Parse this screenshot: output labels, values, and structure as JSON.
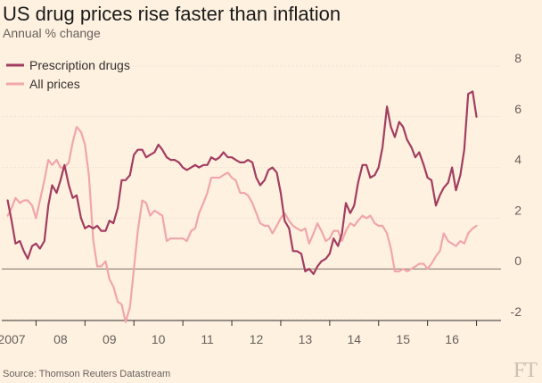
{
  "header": {
    "title": "US drug prices rise faster than inflation",
    "subtitle": "Annual % change"
  },
  "footer": {
    "source": "Source: Thomson Reuters Datastream",
    "logo": "FT"
  },
  "colors": {
    "background": "#fff1e0",
    "prescription": "#a23d60",
    "all_prices": "#f0a6aa",
    "gridline": "#e6d9ce",
    "zeroline": "#7a6e66"
  },
  "chart_data": {
    "type": "line",
    "title": "US drug prices rise faster than inflation",
    "subtitle": "Annual % change",
    "xlabel": "",
    "ylabel": "",
    "ylim": [
      -2,
      8
    ],
    "xlim": [
      2006.8,
      2017.0
    ],
    "yticks": [
      -2,
      0,
      2,
      4,
      6,
      8
    ],
    "xtick_labels": [
      "2007",
      "08",
      "09",
      "10",
      "11",
      "12",
      "13",
      "14",
      "15",
      "16"
    ],
    "xtick_positions": [
      2007,
      2008,
      2009,
      2010,
      2011,
      2012,
      2013,
      2014,
      2015,
      2016
    ],
    "grid": "horizontal",
    "legend": "top-left",
    "series": [
      {
        "name": "Prescription drugs",
        "color": "#a23d60",
        "x": [
          2006.92,
          2007.0,
          2007.08,
          2007.17,
          2007.25,
          2007.33,
          2007.42,
          2007.5,
          2007.58,
          2007.67,
          2007.75,
          2007.83,
          2007.92,
          2008.0,
          2008.08,
          2008.17,
          2008.25,
          2008.33,
          2008.42,
          2008.5,
          2008.58,
          2008.67,
          2008.75,
          2008.83,
          2008.92,
          2009.0,
          2009.08,
          2009.17,
          2009.25,
          2009.33,
          2009.42,
          2009.5,
          2009.58,
          2009.67,
          2009.75,
          2009.83,
          2009.92,
          2010.0,
          2010.08,
          2010.17,
          2010.25,
          2010.33,
          2010.42,
          2010.5,
          2010.58,
          2010.67,
          2010.75,
          2010.83,
          2010.92,
          2011.0,
          2011.08,
          2011.17,
          2011.25,
          2011.33,
          2011.42,
          2011.5,
          2011.58,
          2011.67,
          2011.75,
          2011.83,
          2011.92,
          2012.0,
          2012.08,
          2012.17,
          2012.25,
          2012.33,
          2012.42,
          2012.5,
          2012.58,
          2012.67,
          2012.75,
          2012.83,
          2012.92,
          2013.0,
          2013.08,
          2013.17,
          2013.25,
          2013.33,
          2013.42,
          2013.5,
          2013.58,
          2013.67,
          2013.75,
          2013.83,
          2013.92,
          2014.0,
          2014.08,
          2014.17,
          2014.25,
          2014.33,
          2014.42,
          2014.5,
          2014.58,
          2014.67,
          2014.75,
          2014.83,
          2014.92,
          2015.0,
          2015.08,
          2015.17,
          2015.25,
          2015.33,
          2015.42,
          2015.5,
          2015.58,
          2015.67,
          2015.75,
          2015.83,
          2015.92,
          2016.0,
          2016.08,
          2016.17,
          2016.25,
          2016.33,
          2016.42,
          2016.5
        ],
        "values": [
          2.7,
          1.9,
          1.0,
          1.1,
          0.7,
          0.4,
          0.9,
          1.0,
          0.8,
          1.1,
          2.5,
          3.3,
          3.0,
          3.5,
          4.1,
          3.3,
          2.8,
          2.9,
          2.0,
          1.6,
          1.7,
          1.6,
          1.7,
          1.5,
          1.5,
          1.9,
          1.8,
          2.4,
          3.5,
          3.5,
          3.7,
          4.5,
          4.7,
          4.7,
          4.4,
          4.5,
          4.6,
          4.9,
          4.7,
          4.4,
          4.3,
          4.3,
          4.2,
          4.0,
          3.9,
          4.0,
          4.1,
          4.0,
          4.1,
          4.1,
          4.4,
          4.3,
          4.4,
          4.6,
          4.4,
          4.4,
          4.3,
          4.2,
          4.2,
          4.3,
          4.2,
          3.6,
          3.3,
          3.5,
          3.9,
          4.0,
          3.8,
          3.0,
          1.9,
          1.6,
          0.7,
          0.7,
          0.6,
          -0.1,
          0.0,
          -0.2,
          0.1,
          0.3,
          0.4,
          0.6,
          1.2,
          0.9,
          1.4,
          2.6,
          2.2,
          2.5,
          3.4,
          4.1,
          4.1,
          3.6,
          3.7,
          4.0,
          4.8,
          6.4,
          5.6,
          5.2,
          5.8,
          5.6,
          5.1,
          4.8,
          4.4,
          4.6,
          4.1,
          3.6,
          3.5,
          2.5,
          2.9,
          3.2,
          3.4,
          4.0,
          3.1,
          3.7,
          4.7,
          6.9,
          7.0,
          6.0
        ]
      },
      {
        "name": "All prices",
        "color": "#f0a6aa",
        "x": [
          2006.92,
          2007.0,
          2007.08,
          2007.17,
          2007.25,
          2007.33,
          2007.42,
          2007.5,
          2007.58,
          2007.67,
          2007.75,
          2007.83,
          2007.92,
          2008.0,
          2008.08,
          2008.17,
          2008.25,
          2008.33,
          2008.42,
          2008.5,
          2008.58,
          2008.67,
          2008.75,
          2008.83,
          2008.92,
          2009.0,
          2009.08,
          2009.17,
          2009.25,
          2009.33,
          2009.42,
          2009.5,
          2009.58,
          2009.67,
          2009.75,
          2009.83,
          2009.92,
          2010.0,
          2010.08,
          2010.17,
          2010.25,
          2010.33,
          2010.42,
          2010.5,
          2010.58,
          2010.67,
          2010.75,
          2010.83,
          2010.92,
          2011.0,
          2011.08,
          2011.17,
          2011.25,
          2011.33,
          2011.42,
          2011.5,
          2011.58,
          2011.67,
          2011.75,
          2011.83,
          2011.92,
          2012.0,
          2012.08,
          2012.17,
          2012.25,
          2012.33,
          2012.42,
          2012.5,
          2012.58,
          2012.67,
          2012.75,
          2012.83,
          2012.92,
          2013.0,
          2013.08,
          2013.17,
          2013.25,
          2013.33,
          2013.42,
          2013.5,
          2013.58,
          2013.67,
          2013.75,
          2013.83,
          2013.92,
          2014.0,
          2014.08,
          2014.17,
          2014.25,
          2014.33,
          2014.42,
          2014.5,
          2014.58,
          2014.67,
          2014.75,
          2014.83,
          2014.92,
          2015.0,
          2015.08,
          2015.17,
          2015.25,
          2015.33,
          2015.42,
          2015.5,
          2015.58,
          2015.67,
          2015.75,
          2015.83,
          2015.92,
          2016.0,
          2016.08,
          2016.17,
          2016.25,
          2016.33,
          2016.42,
          2016.5
        ],
        "values": [
          2.1,
          2.4,
          2.8,
          2.6,
          2.7,
          2.7,
          2.5,
          2.0,
          2.7,
          3.5,
          4.3,
          4.1,
          4.3,
          4.0,
          4.0,
          4.2,
          5.0,
          5.6,
          5.4,
          4.9,
          3.7,
          1.1,
          0.1,
          0.1,
          0.3,
          -0.4,
          -0.7,
          -1.3,
          -1.4,
          -2.1,
          -1.5,
          0.0,
          1.5,
          2.7,
          2.6,
          2.1,
          2.3,
          2.2,
          2.1,
          1.1,
          1.2,
          1.2,
          1.2,
          1.2,
          1.1,
          1.5,
          1.6,
          2.2,
          2.6,
          3.0,
          3.6,
          3.6,
          3.6,
          3.7,
          3.8,
          3.6,
          3.5,
          3.0,
          3.0,
          2.9,
          2.6,
          2.2,
          1.8,
          1.7,
          1.7,
          1.4,
          1.7,
          2.0,
          2.2,
          1.9,
          1.7,
          1.6,
          1.5,
          1.6,
          1.0,
          1.4,
          1.8,
          1.5,
          1.1,
          1.2,
          1.5,
          1.5,
          1.1,
          1.5,
          1.8,
          1.7,
          1.9,
          2.1,
          2.0,
          2.1,
          1.8,
          1.7,
          1.7,
          1.4,
          0.8,
          -0.1,
          -0.1,
          0.0,
          -0.1,
          0.0,
          0.1,
          0.2,
          0.2,
          0.0,
          0.2,
          0.5,
          0.7,
          1.4,
          1.1,
          1.0,
          0.9,
          1.1,
          1.0,
          1.4,
          1.6,
          1.7
        ]
      }
    ]
  }
}
